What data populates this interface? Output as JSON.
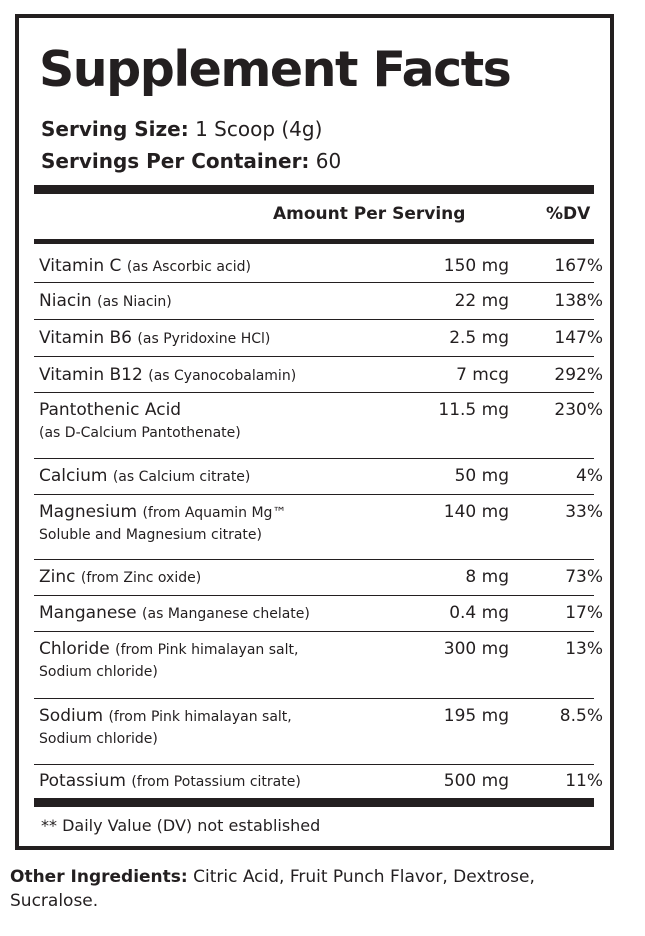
{
  "title": "Supplement Facts",
  "serving_size": {
    "label": "Serving Size:",
    "value": "1 Scoop (4g)"
  },
  "servings_per_container": {
    "label": "Servings Per Container:",
    "value": "60"
  },
  "header": {
    "amount": "Amount Per Serving",
    "dv": "%DV"
  },
  "rows": [
    {
      "name": "Vitamin C",
      "source": "(as Ascorbic acid)",
      "source2": "",
      "amount": "150 mg",
      "dv": "167%"
    },
    {
      "name": "Niacin",
      "source": "(as Niacin)",
      "source2": "",
      "amount": "22 mg",
      "dv": "138%"
    },
    {
      "name": "Vitamin B6",
      "source": "(as Pyridoxine HCl)",
      "source2": "",
      "amount": "2.5 mg",
      "dv": "147%"
    },
    {
      "name": "Vitamin B12",
      "source": "(as Cyanocobalamin)",
      "source2": "",
      "amount": "7 mcg",
      "dv": "292%"
    },
    {
      "name": "Pantothenic Acid",
      "source": "",
      "source2": "(as D-Calcium Pantothenate)",
      "amount": "11.5 mg",
      "dv": "230%"
    },
    {
      "name": "Calcium",
      "source": "(as Calcium citrate)",
      "source2": "",
      "amount": "50 mg",
      "dv": "4%"
    },
    {
      "name": "Magnesium",
      "source": "(from Aquamin Mg™",
      "source2": "Soluble and Magnesium citrate)",
      "amount": "140 mg",
      "dv": "33%"
    },
    {
      "name": "Zinc",
      "source": "(from Zinc oxide)",
      "source2": "",
      "amount": "8 mg",
      "dv": "73%"
    },
    {
      "name": "Manganese",
      "source": "(as Manganese chelate)",
      "source2": "",
      "amount": "0.4 mg",
      "dv": "17%"
    },
    {
      "name": "Chloride",
      "source": "(from Pink himalayan salt,",
      "source2": "Sodium chloride)",
      "amount": "300 mg",
      "dv": "13%"
    },
    {
      "name": "Sodium",
      "source": "(from Pink himalayan salt,",
      "source2": "Sodium chloride)",
      "amount": "195 mg",
      "dv": "8.5%"
    },
    {
      "name": "Potassium",
      "source": "(from Potassium citrate)",
      "source2": "",
      "amount": "500 mg",
      "dv": "11%"
    }
  ],
  "footnote": "** Daily Value (DV) not established",
  "other_ingredients": {
    "label": "Other Ingredients:",
    "text": "Citric Acid, Fruit Punch Flavor, Dextrose, Sucralose."
  }
}
